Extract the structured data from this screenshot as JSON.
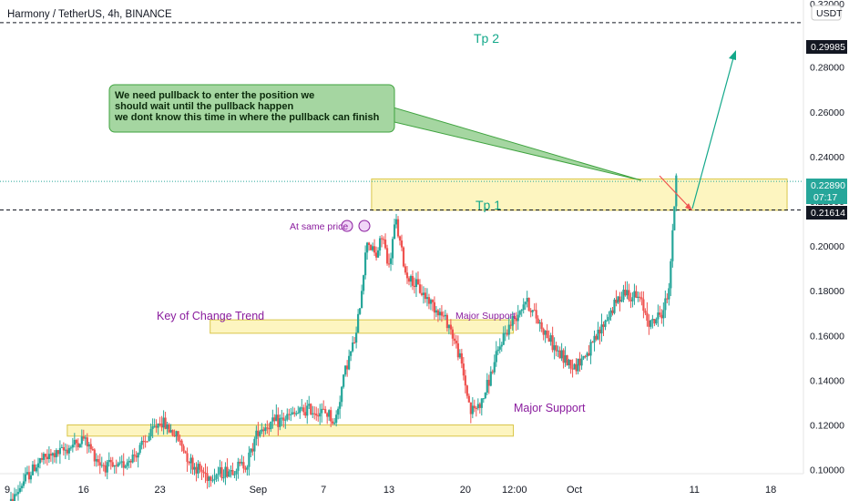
{
  "header": {
    "title": "Harmony / TetherUS, 4h, BINANCE",
    "currency": "USDT"
  },
  "colors": {
    "up": "#26a69a",
    "down": "#ef5350",
    "zone_fill": "#fdf3b5",
    "zone_stroke": "#d9c64a",
    "note_fill": "#a5d6a1",
    "note_stroke": "#3fa33f",
    "teal": "#13a88a",
    "purple": "#8a1c9e",
    "price_line": "#26a69a"
  },
  "chart_data": {
    "type": "candlestick",
    "symbol": "Harmony / TetherUS",
    "interval": "4h",
    "exchange": "BINANCE",
    "ylim": [
      0.086,
      0.31
    ],
    "y_ticks": [
      0.1,
      0.12,
      0.14,
      0.16,
      0.18,
      0.2,
      0.22,
      0.24,
      0.26,
      0.28
    ],
    "y_tick_labels": [
      "0.10000",
      "0.12000",
      "0.14000",
      "0.16000",
      "0.18000",
      "0.20000",
      "0.22000",
      "0.24000",
      "0.26000",
      "0.28000"
    ],
    "top_partial_label": "0.32000",
    "x_labels": [
      "9",
      "16",
      "23",
      "Sep",
      "7",
      "13",
      "20",
      "12:00",
      "Oct",
      "11",
      "18"
    ],
    "x_label_days": [
      9,
      16,
      23,
      32,
      38,
      44,
      51,
      55.5,
      61,
      72,
      79
    ],
    "x_range_days": [
      9,
      82
    ],
    "anchors": [
      [
        9.0,
        0.082
      ],
      [
        10.5,
        0.095
      ],
      [
        12.0,
        0.104
      ],
      [
        14.0,
        0.108
      ],
      [
        16.0,
        0.114
      ],
      [
        17.5,
        0.103
      ],
      [
        19.0,
        0.1
      ],
      [
        21.0,
        0.108
      ],
      [
        23.0,
        0.122
      ],
      [
        24.5,
        0.115
      ],
      [
        26.0,
        0.102
      ],
      [
        27.5,
        0.097
      ],
      [
        29.5,
        0.1
      ],
      [
        31.0,
        0.103
      ],
      [
        32.0,
        0.118
      ],
      [
        33.5,
        0.121
      ],
      [
        35.0,
        0.124
      ],
      [
        36.5,
        0.127
      ],
      [
        38.5,
        0.125
      ],
      [
        39.0,
        0.12
      ],
      [
        40.0,
        0.145
      ],
      [
        41.0,
        0.16
      ],
      [
        42.0,
        0.203
      ],
      [
        42.8,
        0.195
      ],
      [
        43.4,
        0.205
      ],
      [
        44.0,
        0.19
      ],
      [
        44.6,
        0.212
      ],
      [
        45.5,
        0.188
      ],
      [
        46.5,
        0.182
      ],
      [
        48.0,
        0.174
      ],
      [
        49.5,
        0.165
      ],
      [
        50.5,
        0.15
      ],
      [
        51.5,
        0.126
      ],
      [
        52.5,
        0.13
      ],
      [
        53.5,
        0.145
      ],
      [
        54.5,
        0.16
      ],
      [
        56.5,
        0.176
      ],
      [
        57.5,
        0.168
      ],
      [
        58.5,
        0.16
      ],
      [
        59.5,
        0.152
      ],
      [
        61.0,
        0.146
      ],
      [
        62.5,
        0.154
      ],
      [
        64.0,
        0.168
      ],
      [
        65.5,
        0.18
      ],
      [
        67.0,
        0.176
      ],
      [
        68.0,
        0.165
      ],
      [
        69.0,
        0.17
      ],
      [
        69.6,
        0.178
      ],
      [
        70.0,
        0.205
      ],
      [
        70.4,
        0.238
      ]
    ],
    "last_price": "0.22890",
    "countdown": "07:17",
    "ref_lines": [
      {
        "label": "0.29985",
        "value": 0.29985
      },
      {
        "label": "0.21614",
        "value": 0.21614
      }
    ],
    "zones": [
      {
        "x_start_days": 42.4,
        "x_end_days": 80.5,
        "y_low": 0.216,
        "y_high": 0.23
      },
      {
        "x_start_days": 27.6,
        "x_end_days": 55.4,
        "y_low": 0.161,
        "y_high": 0.167
      },
      {
        "x_start_days": 14.5,
        "x_end_days": 55.4,
        "y_low": 0.115,
        "y_high": 0.12
      }
    ]
  },
  "annotations": {
    "note_lines": [
      "We need pullback to enter the position we",
      "should wait until the pullback happen",
      "we dont know this time in where the pullback can finish"
    ],
    "tp2": "Tp 2",
    "tp1": "Tp 1",
    "same_price": "At same price",
    "key_trend": "Key of Change Trend",
    "major_support_1": "Major Support",
    "major_support_2": "Major Support"
  }
}
